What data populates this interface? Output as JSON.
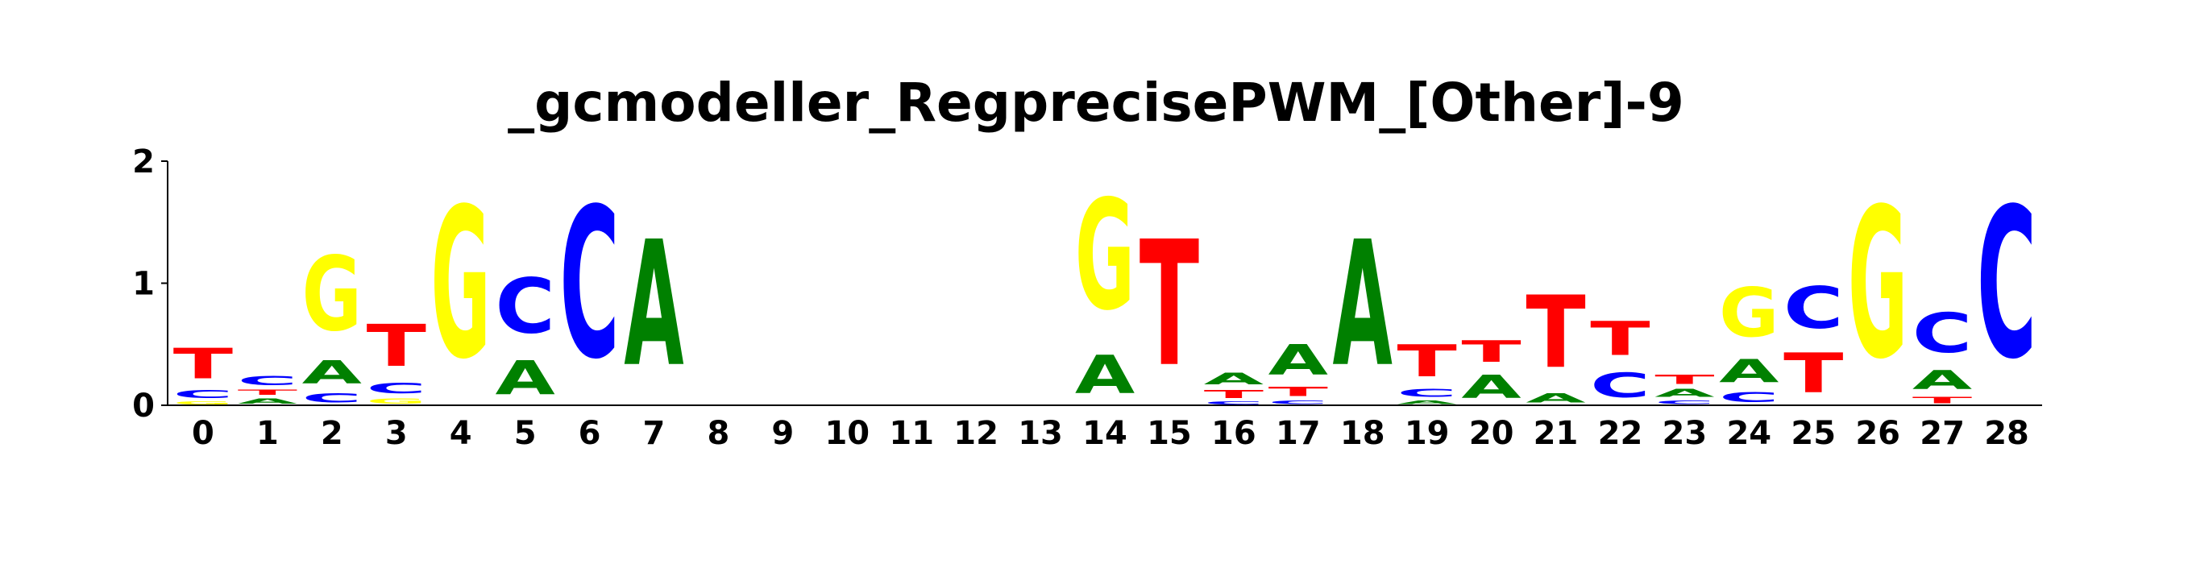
{
  "chart_data": {
    "type": "sequence-logo",
    "title": "_gcmodeller_RegprecisePWM_[Other]-9",
    "ylim": [
      0,
      2
    ],
    "yticks": [
      "0",
      "1",
      "2"
    ],
    "colors": {
      "A": "#008000",
      "C": "#0000FF",
      "G": "#FFFF00",
      "T": "#FF0000"
    },
    "positions": [
      {
        "label": "0",
        "stack": [
          [
            "G",
            0.04
          ],
          [
            "C",
            0.1
          ],
          [
            "T",
            0.4
          ]
        ]
      },
      {
        "label": "1",
        "stack": [
          [
            "A",
            0.07
          ],
          [
            "T",
            0.07
          ],
          [
            "C",
            0.12
          ]
        ]
      },
      {
        "label": "2",
        "stack": [
          [
            "C",
            0.12
          ],
          [
            "A",
            0.3
          ],
          [
            "G",
            0.98
          ]
        ]
      },
      {
        "label": "3",
        "stack": [
          [
            "G",
            0.07
          ],
          [
            "C",
            0.14
          ],
          [
            "T",
            0.55
          ]
        ]
      },
      {
        "label": "4",
        "stack": [
          [
            "G",
            1.98
          ]
        ]
      },
      {
        "label": "5",
        "stack": [
          [
            "A",
            0.45
          ],
          [
            "C",
            0.72
          ]
        ]
      },
      {
        "label": "6",
        "stack": [
          [
            "C",
            1.98
          ]
        ]
      },
      {
        "label": "7",
        "stack": [
          [
            "A",
            1.65
          ]
        ]
      },
      {
        "label": "8",
        "stack": []
      },
      {
        "label": "9",
        "stack": []
      },
      {
        "label": "10",
        "stack": []
      },
      {
        "label": "11",
        "stack": []
      },
      {
        "label": "12",
        "stack": []
      },
      {
        "label": "13",
        "stack": []
      },
      {
        "label": "14",
        "stack": [
          [
            "A",
            0.5
          ],
          [
            "G",
            1.45
          ]
        ]
      },
      {
        "label": "15",
        "stack": [
          [
            "T",
            1.65
          ]
        ]
      },
      {
        "label": "16",
        "stack": [
          [
            "C",
            0.04
          ],
          [
            "T",
            0.1
          ],
          [
            "A",
            0.15
          ]
        ]
      },
      {
        "label": "17",
        "stack": [
          [
            "C",
            0.05
          ],
          [
            "T",
            0.12
          ],
          [
            "A",
            0.4
          ]
        ]
      },
      {
        "label": "18",
        "stack": [
          [
            "A",
            1.65
          ]
        ]
      },
      {
        "label": "19",
        "stack": [
          [
            "A",
            0.05
          ],
          [
            "C",
            0.1
          ],
          [
            "T",
            0.42
          ]
        ]
      },
      {
        "label": "20",
        "stack": [
          [
            "A",
            0.3
          ],
          [
            "T",
            0.28
          ]
        ]
      },
      {
        "label": "21",
        "stack": [
          [
            "A",
            0.12
          ],
          [
            "T",
            0.95
          ]
        ]
      },
      {
        "label": "22",
        "stack": [
          [
            "C",
            0.32
          ],
          [
            "T",
            0.45
          ]
        ]
      },
      {
        "label": "23",
        "stack": [
          [
            "C",
            0.05
          ],
          [
            "A",
            0.1
          ],
          [
            "T",
            0.12
          ]
        ]
      },
      {
        "label": "24",
        "stack": [
          [
            "C",
            0.13
          ],
          [
            "A",
            0.3
          ],
          [
            "G",
            0.65
          ]
        ]
      },
      {
        "label": "25",
        "stack": [
          [
            "T",
            0.52
          ],
          [
            "C",
            0.55
          ]
        ]
      },
      {
        "label": "26",
        "stack": [
          [
            "G",
            1.98
          ]
        ]
      },
      {
        "label": "27",
        "stack": [
          [
            "T",
            0.08
          ],
          [
            "A",
            0.25
          ],
          [
            "C",
            0.52
          ]
        ]
      },
      {
        "label": "28",
        "stack": [
          [
            "C",
            1.98
          ]
        ]
      }
    ]
  }
}
